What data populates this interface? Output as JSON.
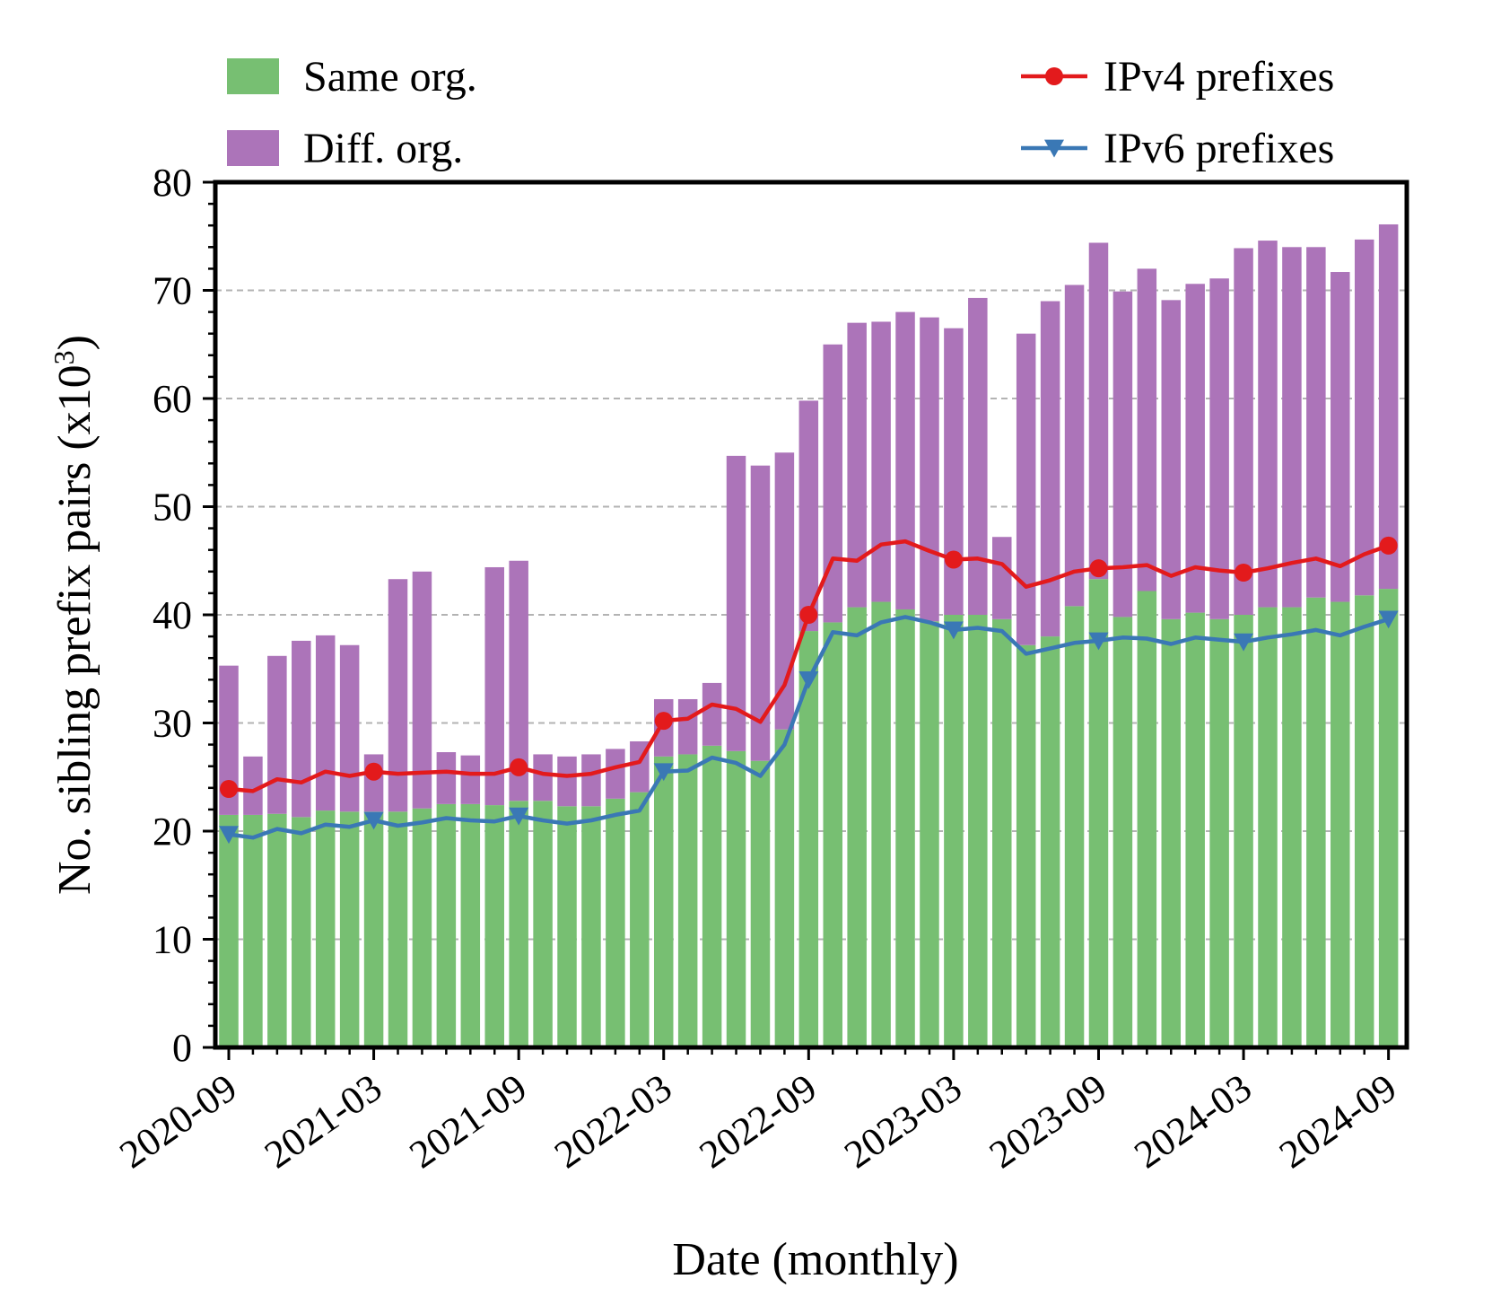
{
  "chart_data": {
    "type": "bar",
    "stacked": true,
    "xlabel": "Date (monthly)",
    "ylabel": "No. sibling prefix pairs (x10",
    "ylabel_sup": "3",
    "ylabel_close": ")",
    "ylim": [
      0,
      80
    ],
    "yticks": [
      "0",
      "10",
      "20",
      "30",
      "40",
      "50",
      "60",
      "70",
      "80"
    ],
    "grid": "horizontal-dashed",
    "xtick_labels": [
      "2020-09",
      "2021-03",
      "2021-09",
      "2022-03",
      "2022-09",
      "2023-03",
      "2023-09",
      "2024-03",
      "2024-09"
    ],
    "xtick_month_index": [
      0,
      6,
      12,
      18,
      24,
      30,
      36,
      42,
      48
    ],
    "categories": [
      "2020-09",
      "2020-10",
      "2020-11",
      "2020-12",
      "2021-01",
      "2021-02",
      "2021-03",
      "2021-04",
      "2021-05",
      "2021-06",
      "2021-07",
      "2021-08",
      "2021-09",
      "2021-10",
      "2021-11",
      "2021-12",
      "2022-01",
      "2022-02",
      "2022-03",
      "2022-04",
      "2022-05",
      "2022-06",
      "2022-07",
      "2022-08",
      "2022-09",
      "2022-10",
      "2022-11",
      "2022-12",
      "2023-01",
      "2023-02",
      "2023-03",
      "2023-04",
      "2023-05",
      "2023-06",
      "2023-07",
      "2023-08",
      "2023-09",
      "2023-10",
      "2023-11",
      "2023-12",
      "2024-01",
      "2024-02",
      "2024-03",
      "2024-04",
      "2024-05",
      "2024-06",
      "2024-07",
      "2024-08",
      "2024-09"
    ],
    "bar_series": [
      {
        "name": "Same org.",
        "color": "#77bf72",
        "values": [
          21.5,
          21.5,
          21.6,
          21.3,
          21.9,
          21.8,
          21.8,
          21.8,
          22.1,
          22.5,
          22.5,
          22.4,
          22.8,
          22.8,
          22.3,
          22.3,
          23.0,
          23.6,
          26.9,
          27.1,
          27.9,
          27.4,
          26.5,
          29.4,
          38.5,
          39.3,
          40.7,
          41.2,
          40.5,
          39.4,
          40.0,
          40.0,
          39.6,
          37.2,
          38.0,
          40.8,
          43.3,
          39.8,
          42.2,
          39.6,
          40.2,
          39.6,
          40.0,
          40.7,
          40.7,
          41.6,
          41.2,
          41.8,
          42.4
        ]
      },
      {
        "name": "Diff. org.",
        "color": "#ac74b9",
        "values": [
          13.8,
          5.4,
          14.6,
          16.3,
          16.2,
          15.4,
          5.3,
          21.5,
          21.9,
          4.8,
          4.5,
          22.0,
          22.2,
          4.3,
          4.6,
          4.8,
          4.6,
          4.7,
          5.3,
          5.1,
          5.8,
          27.3,
          27.3,
          25.6,
          21.3,
          25.7,
          26.3,
          25.9,
          27.5,
          28.1,
          26.5,
          29.3,
          7.6,
          28.8,
          31.0,
          29.7,
          31.1,
          30.1,
          29.8,
          29.5,
          30.4,
          31.5,
          33.9,
          33.9,
          33.3,
          32.4,
          30.5,
          32.9,
          33.7
        ]
      }
    ],
    "line_series": [
      {
        "name": "IPv4 prefixes",
        "color": "#e31a1c",
        "marker": "circle",
        "marker_every": 6,
        "values": [
          23.9,
          23.7,
          24.8,
          24.5,
          25.5,
          25.1,
          25.5,
          25.3,
          25.4,
          25.5,
          25.3,
          25.3,
          25.9,
          25.3,
          25.1,
          25.3,
          25.9,
          26.4,
          30.2,
          30.4,
          31.7,
          31.3,
          30.1,
          33.5,
          40.0,
          45.2,
          45.0,
          46.5,
          46.8,
          45.9,
          45.1,
          45.2,
          44.7,
          42.6,
          43.2,
          44.0,
          44.3,
          44.4,
          44.6,
          43.6,
          44.4,
          44.1,
          43.9,
          44.3,
          44.8,
          45.2,
          44.5,
          45.6,
          46.4
        ]
      },
      {
        "name": "IPv6 prefixes",
        "color": "#3a78b5",
        "marker": "triangle-down",
        "marker_every": 6,
        "values": [
          19.7,
          19.4,
          20.2,
          19.8,
          20.6,
          20.4,
          21.0,
          20.5,
          20.8,
          21.2,
          21.0,
          20.9,
          21.4,
          21.0,
          20.7,
          21.0,
          21.5,
          21.9,
          25.5,
          25.6,
          26.8,
          26.3,
          25.1,
          28.0,
          34.0,
          38.4,
          38.1,
          39.3,
          39.8,
          39.3,
          38.6,
          38.8,
          38.5,
          36.4,
          36.9,
          37.4,
          37.6,
          37.9,
          37.8,
          37.3,
          37.9,
          37.7,
          37.5,
          37.9,
          38.2,
          38.6,
          38.1,
          38.9,
          39.6
        ]
      }
    ],
    "legend": {
      "left_entries": [
        "Same org.",
        "Diff. org."
      ],
      "right_entries": [
        "IPv4 prefixes",
        "IPv6 prefixes"
      ],
      "placement": "above plot, split left and right"
    }
  }
}
